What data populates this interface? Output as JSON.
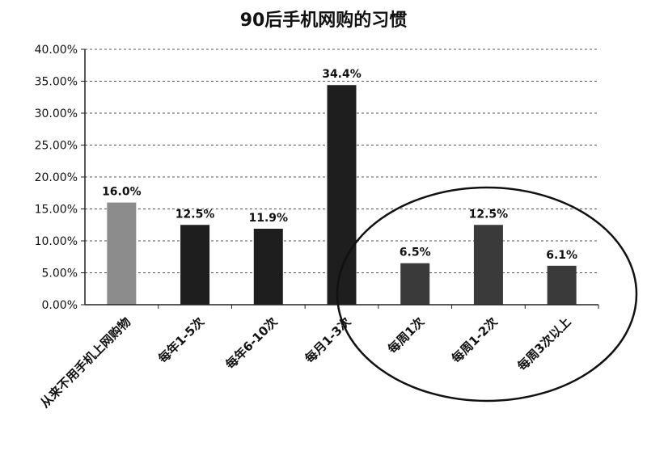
{
  "chart_data": {
    "type": "bar",
    "title": "90后手机网购的习惯",
    "xlabel": "",
    "ylabel": "",
    "categories": [
      "从来不用手机上网购物",
      "每年1-5次",
      "每年6-10次",
      "每月1-3次",
      "每周1次",
      "每周1-2次",
      "每周3次以上"
    ],
    "values": [
      16.0,
      12.5,
      11.9,
      34.4,
      6.5,
      12.5,
      6.1
    ],
    "data_labels": [
      "16.0%",
      "12.5%",
      "11.9%",
      "34.4%",
      "6.5%",
      "12.5%",
      "6.1%"
    ],
    "ylim": [
      0,
      40
    ],
    "yticks": [
      "0.00%",
      "5.00%",
      "10.00%",
      "15.00%",
      "20.00%",
      "25.00%",
      "30.00%",
      "35.00%",
      "40.00%"
    ],
    "grid": true,
    "legend": "none",
    "colors": {
      "bars": [
        "#8c8c8c",
        "#1e1e1e",
        "#1e1e1e",
        "#1e1e1e",
        "#3a3a3a",
        "#3a3a3a",
        "#3a3a3a"
      ],
      "grid": "#555555",
      "axis": "#222222"
    }
  }
}
